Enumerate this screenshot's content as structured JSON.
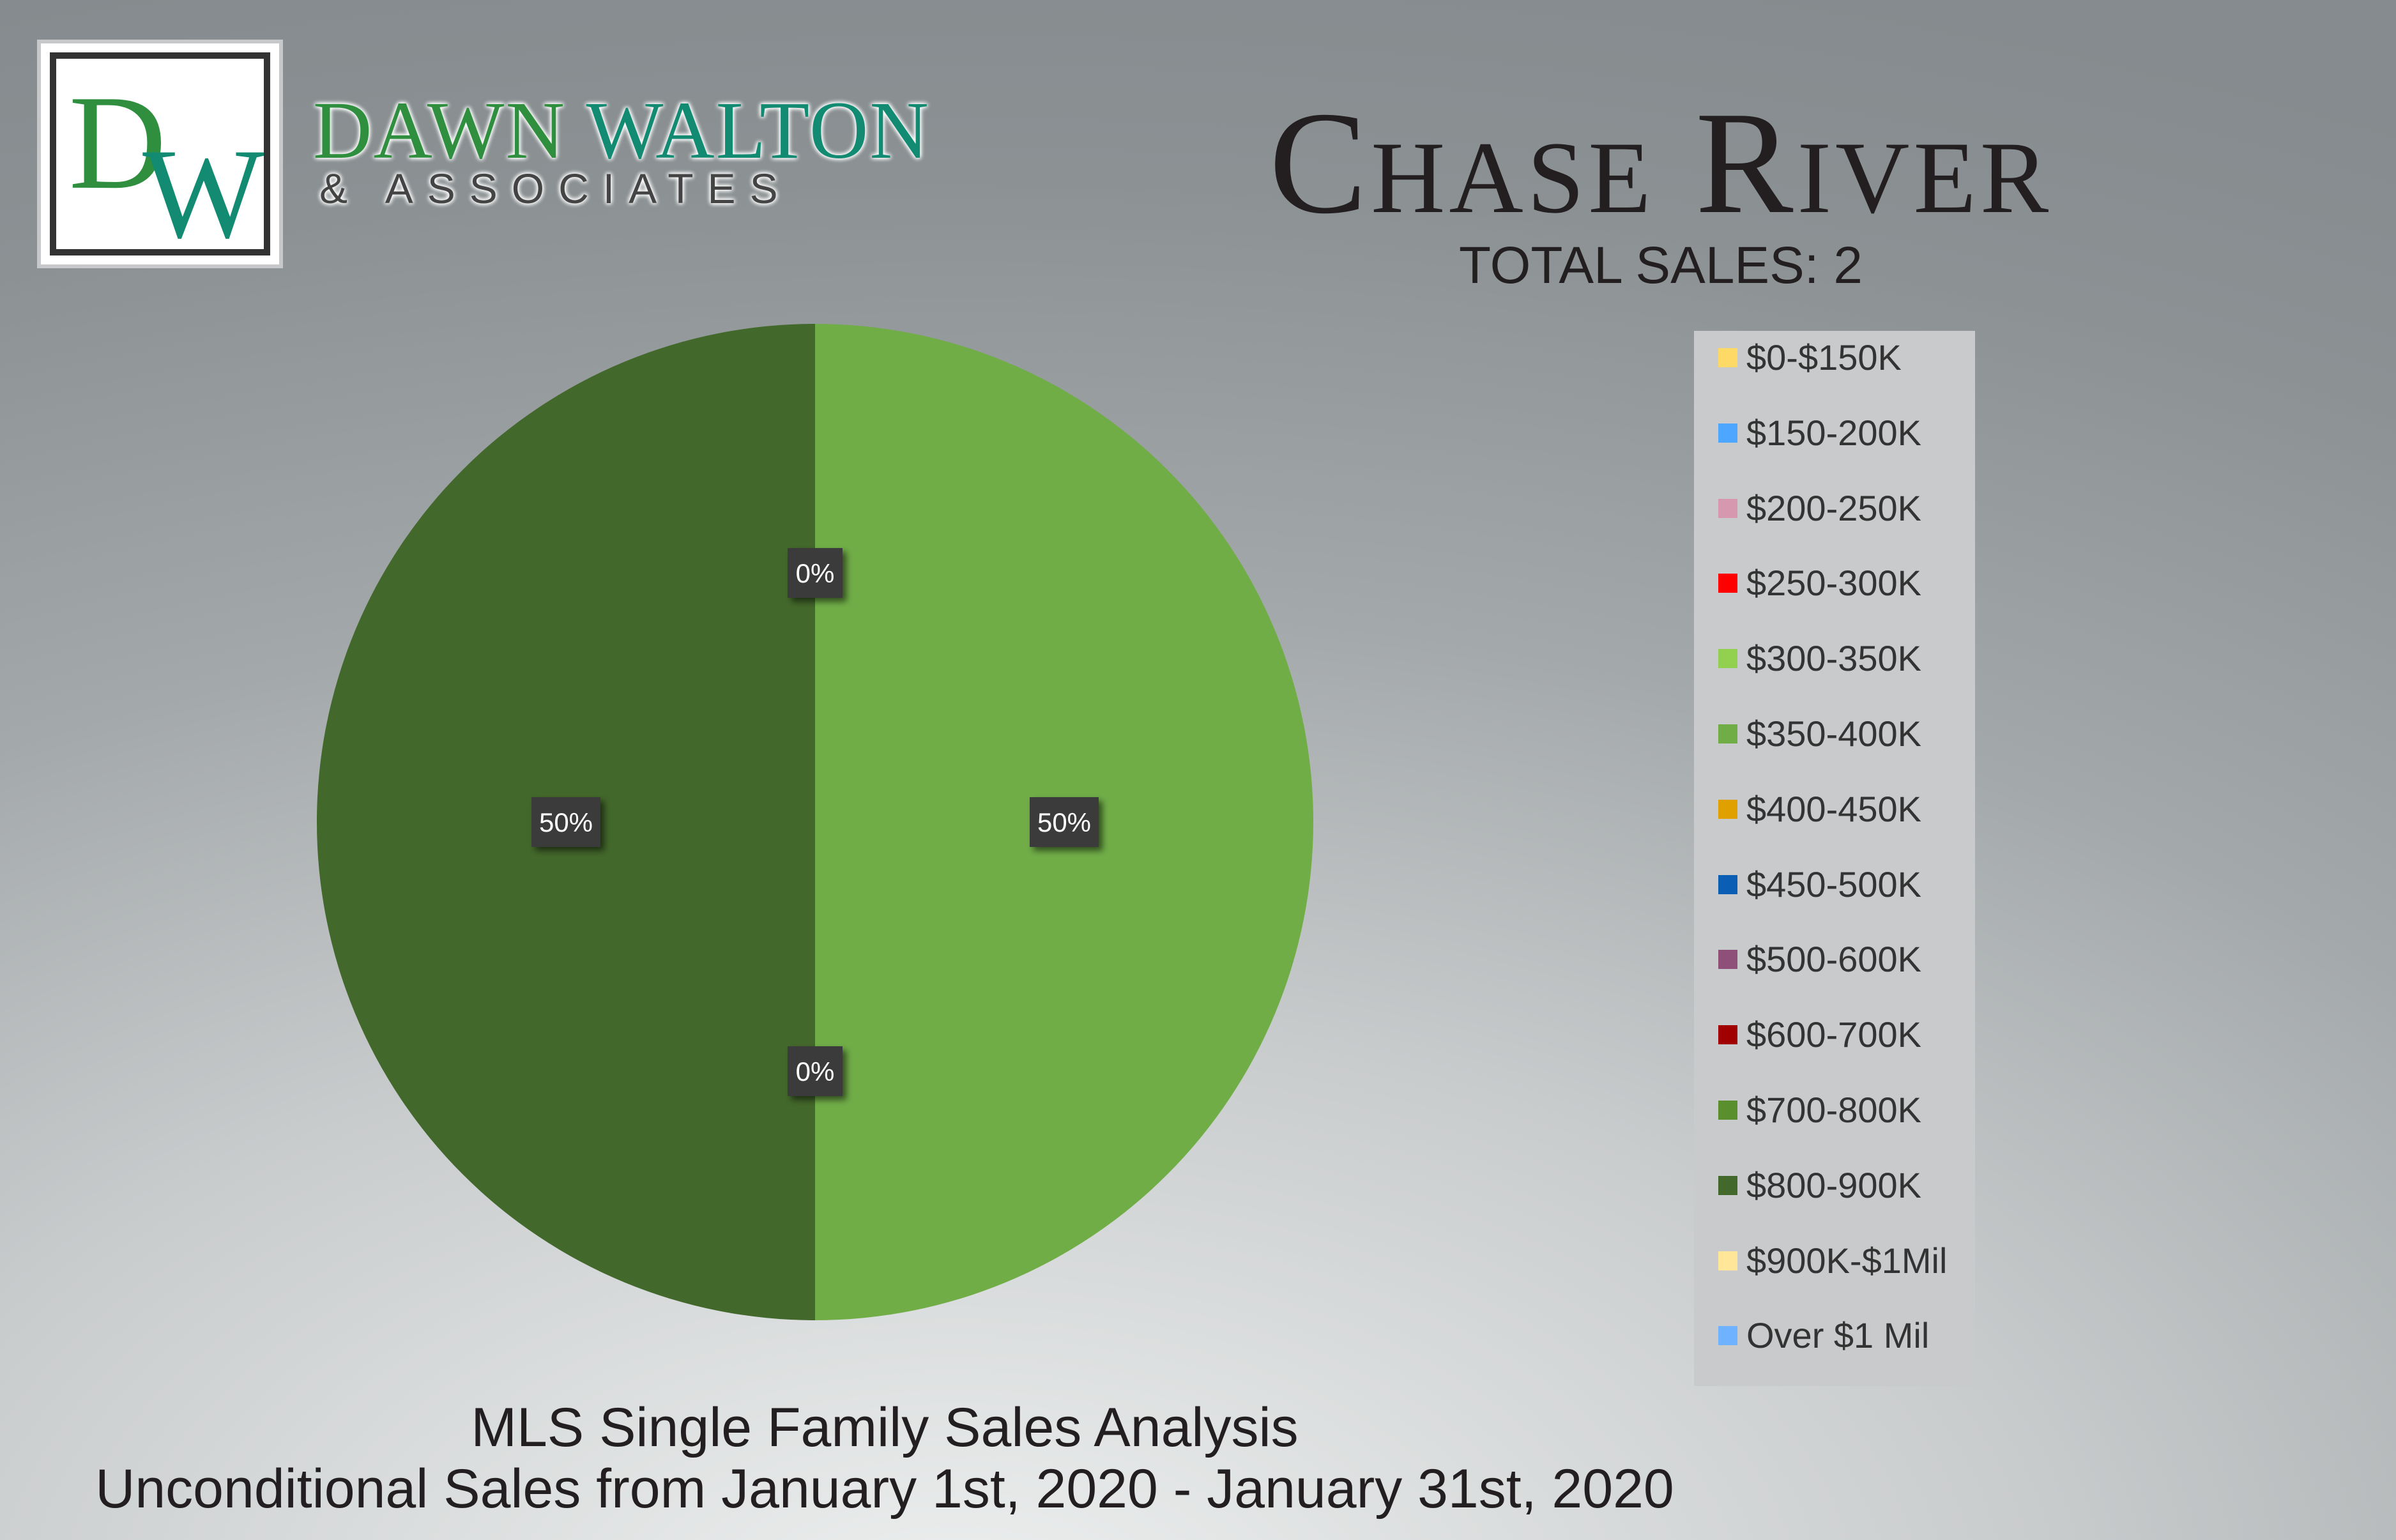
{
  "brand": {
    "logo_monogram": "DW",
    "name_part1": "DAWN",
    "name_part2": "WALTON",
    "subtitle": "& ASSOCIATES",
    "colors": {
      "green": "#2f8f3f",
      "teal": "#138a72",
      "dark": "#333333"
    }
  },
  "header": {
    "title": "Chase River",
    "total_sales": "TOTAL SALES: 2"
  },
  "footer": {
    "line1": "MLS Single Family Sales Analysis",
    "line2": "Unconditional Sales from January 1st, 2020 - January 31st, 2020"
  },
  "chart_data": {
    "type": "pie",
    "categories": [
      "$0-$150K",
      "$150-200K",
      "$200-250K",
      "$250-300K",
      "$300-350K",
      "$350-400K",
      "$400-450K",
      "$450-500K",
      "$500-600K",
      "$600-700K",
      "$700-800K",
      "$800-900K",
      "$900K-$1Mil",
      "Over $1 Mil"
    ],
    "values": [
      0,
      0,
      0,
      0,
      0,
      1,
      0,
      0,
      0,
      0,
      0,
      1,
      0,
      0
    ],
    "colors": [
      "#ffd966",
      "#4da6ff",
      "#d598ae",
      "#ff0000",
      "#92d050",
      "#70ad47",
      "#e0a000",
      "#0a5fb5",
      "#8e5078",
      "#a00000",
      "#5a8f2e",
      "#43682b",
      "#ffe699",
      "#6fb2ff"
    ],
    "data_labels": [
      {
        "category": "$350-400K",
        "text": "50%"
      },
      {
        "category": "$800-900K",
        "text": "50%"
      },
      {
        "category": "$700-800K",
        "text": "0%"
      },
      {
        "category": "$900K-$1Mil",
        "text": "0%"
      }
    ],
    "legend_position": "right"
  }
}
